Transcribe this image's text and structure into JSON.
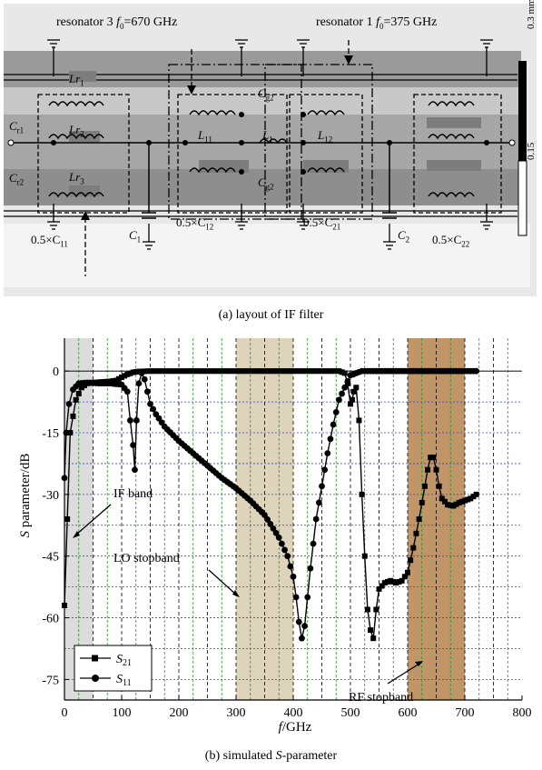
{
  "figure_a": {
    "caption": "(a) layout of IF filter",
    "resonator_3_label": "resonator 3",
    "resonator_3_freq": "=670 GHz",
    "resonator_1_label": "resonator 1",
    "resonator_1_freq": "=375 GHz",
    "f0_symbol": "f",
    "f0_sub": "0",
    "scale_top": "0.3 mm",
    "scale_bottom": "0.15",
    "components": {
      "lr1": "Lr",
      "lr1_sub": "1",
      "lr2": "Lr",
      "lr2_sub": "2",
      "lr3": "Lr",
      "lr3_sub": "3",
      "cr1": "C",
      "cr1_sub": "r1",
      "cr2": "C",
      "cr2_sub": "r2",
      "cg2_top": "C",
      "cg2_top_sub": "g2",
      "cg2_bot": "C",
      "cg2_bot_sub": "g2",
      "l11": "L",
      "l11_sub": "11",
      "l1": "L",
      "l1_sub": "1",
      "l12": "L",
      "l12_sub": "12",
      "c11": "0.5×C",
      "c11_sub": "11",
      "c1": "C",
      "c1_sub": "1",
      "c12": "0.5×C",
      "c12_sub": "12",
      "c21": "0.5×C",
      "c21_sub": "21",
      "c2": "C",
      "c2_sub": "2",
      "c22": "0.5×C",
      "c22_sub": "22"
    }
  },
  "figure_b": {
    "caption_prefix": "(b) simulated ",
    "caption_italic": "S",
    "caption_suffix": "-parameter",
    "annotations": {
      "if_band": "IF band",
      "lo_stopband": "LO stopband",
      "rf_stopband": "RF stopband"
    }
  },
  "chart_data": {
    "type": "line",
    "xlabel": "f/GHz",
    "xlabel_italic": "f",
    "xlabel_unit": "/GHz",
    "ylabel": "S parameter/dB",
    "ylabel_italic": "S",
    "ylabel_rest": " parameter/dB",
    "xlim": [
      0,
      800
    ],
    "ylim": [
      -80,
      8
    ],
    "x_ticks": [
      0,
      100,
      200,
      300,
      400,
      500,
      600,
      700,
      800
    ],
    "y_ticks": [
      0,
      -15,
      -30,
      -45,
      -60,
      -75
    ],
    "x_tick_labels": [
      "0",
      "100",
      "200",
      "300",
      "400",
      "500",
      "600",
      "700",
      "800"
    ],
    "y_tick_labels": [
      "0",
      "-15",
      "-30",
      "-45",
      "-60",
      "-75"
    ],
    "grid": true,
    "legend_position": "bottom-left",
    "colors": {
      "grid": "#1f9a1f",
      "zero_line": "#3344cc",
      "band_lines": "#000000"
    },
    "shaded_bands": [
      {
        "name": "IF band",
        "x": [
          0,
          50
        ],
        "color": "#d6d6d6"
      },
      {
        "name": "LO stopband",
        "x": [
          300,
          400
        ],
        "color": "#d8ccb0"
      },
      {
        "name": "RF stopband",
        "x": [
          600,
          700
        ],
        "color": "#b5834d"
      }
    ],
    "series": [
      {
        "name": "S21",
        "name_main": "S",
        "name_sub": "21",
        "marker": "square",
        "x": [
          0,
          10,
          20,
          30,
          40,
          50,
          60,
          70,
          80,
          90,
          100,
          110,
          120,
          130,
          140,
          150,
          200,
          250,
          300,
          350,
          400,
          450,
          480,
          490,
          495,
          500,
          503,
          506,
          510,
          515,
          520,
          525,
          530,
          535,
          540,
          545,
          550,
          560,
          570,
          580,
          590,
          600,
          610,
          620,
          630,
          635,
          640,
          645,
          650,
          655,
          660,
          670,
          680,
          690,
          700,
          710,
          720
        ],
        "y": [
          -57,
          -15,
          -7,
          -4,
          -3,
          -2.8,
          -2.7,
          -2.6,
          -2.5,
          -2.3,
          -1.5,
          -0.8,
          -0.3,
          -0.1,
          -0.05,
          0,
          0,
          0,
          0,
          0,
          0,
          0,
          0,
          -0.5,
          -3,
          -8,
          -7,
          -5,
          -4,
          -12,
          -30,
          -45,
          -58,
          -63,
          -65,
          -58,
          -53,
          -51.5,
          -51,
          -51.5,
          -51,
          -49,
          -43,
          -36,
          -28,
          -24,
          -21,
          -21,
          -24,
          -28,
          -31,
          -32.5,
          -32.8,
          -32,
          -31.5,
          -31,
          -30
        ]
      },
      {
        "name": "S11",
        "name_main": "S",
        "name_sub": "11",
        "marker": "circle",
        "x": [
          0,
          3,
          8,
          15,
          25,
          40,
          60,
          80,
          100,
          110,
          115,
          120,
          123,
          126,
          130,
          135,
          140,
          145,
          150,
          160,
          175,
          200,
          225,
          250,
          275,
          300,
          325,
          350,
          375,
          390,
          400,
          405,
          410,
          415,
          420,
          425,
          430,
          440,
          450,
          460,
          470,
          480,
          490,
          495,
          500,
          505,
          510,
          520,
          550,
          600,
          650,
          700,
          720
        ],
        "y": [
          -26,
          -15,
          -8,
          -4.5,
          -3,
          -2.8,
          -3,
          -3,
          -3.3,
          -5,
          -12,
          -18,
          -24,
          -12,
          -3,
          -0.5,
          -2,
          -5,
          -8,
          -10.5,
          -13.5,
          -17,
          -20,
          -23,
          -26,
          -28.5,
          -31.5,
          -35,
          -40.5,
          -45,
          -50,
          -55,
          -61,
          -65,
          -62,
          -55,
          -48,
          -36,
          -28,
          -20,
          -13,
          -7,
          -4,
          -2.5,
          -1,
          -0.8,
          -0.5,
          0,
          0,
          0,
          0,
          0,
          0
        ]
      }
    ]
  }
}
